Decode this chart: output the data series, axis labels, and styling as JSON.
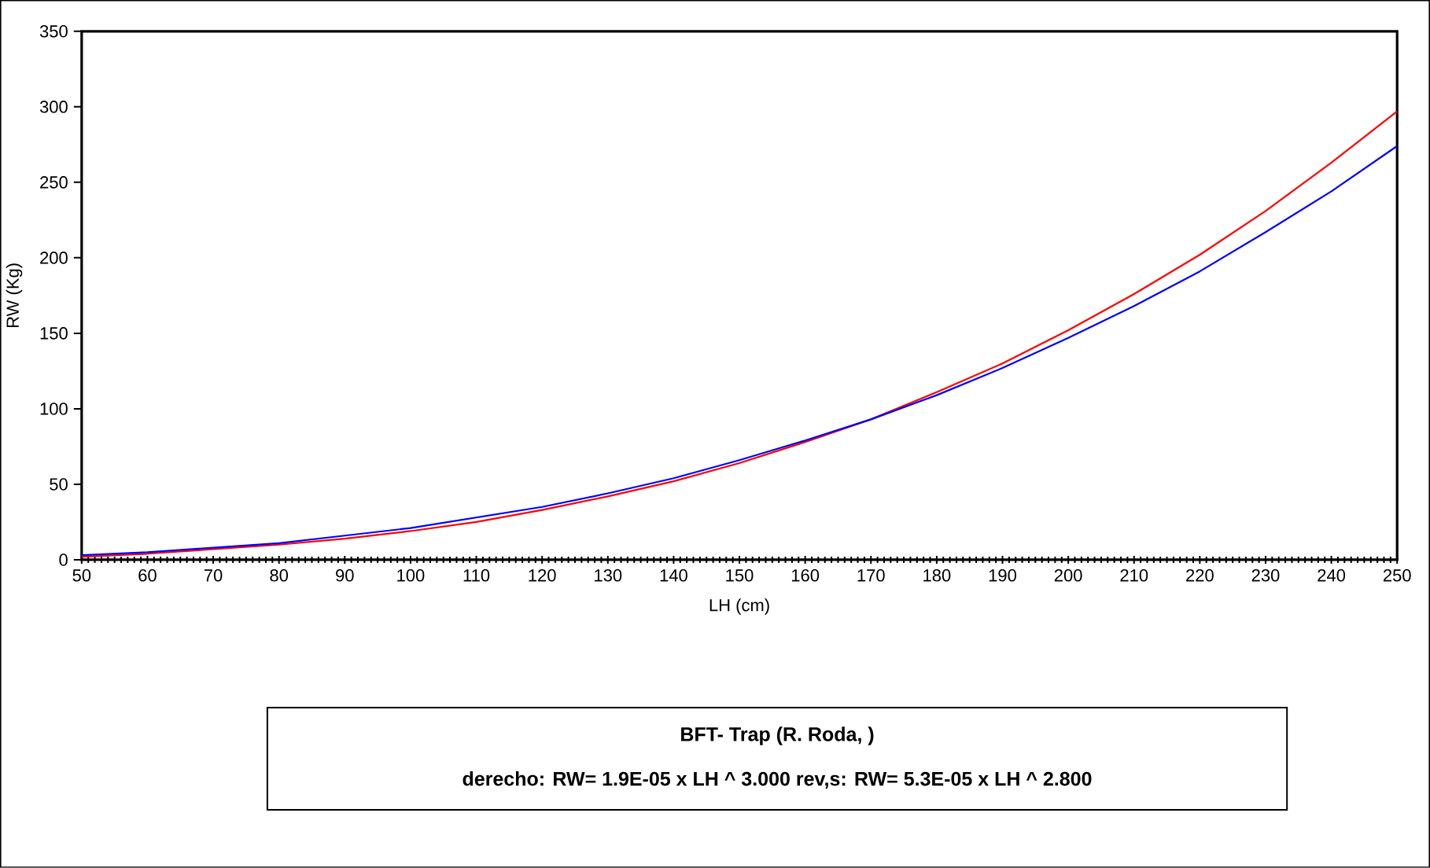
{
  "chart_data": {
    "type": "line",
    "title": "BFT- Trap (R. Roda, )",
    "subtitle": "derecho: RW= 1.9E-05 x LH ^ 3.000   rev,s: RW= 5.3E-05 x LH ^ 2.800",
    "xlabel": "LH (cm)",
    "ylabel": "RW (Kg)",
    "x": [
      50,
      60,
      70,
      80,
      90,
      100,
      110,
      120,
      130,
      140,
      150,
      160,
      170,
      180,
      190,
      200,
      210,
      220,
      230,
      240,
      250
    ],
    "series": [
      {
        "color": "#ff0000",
        "values": [
          2,
          4,
          7,
          10,
          14,
          19,
          25,
          33,
          42,
          52,
          64,
          78,
          93,
          111,
          130,
          152,
          176,
          202,
          231,
          263,
          297
        ]
      },
      {
        "color": "#0000ff",
        "values": [
          3,
          5,
          8,
          11,
          16,
          21,
          28,
          35,
          44,
          54,
          66,
          79,
          93,
          109,
          127,
          147,
          168,
          191,
          217,
          244,
          274
        ]
      }
    ],
    "xlim": [
      50,
      250
    ],
    "ylim": [
      0,
      350
    ],
    "xticks": [
      50,
      60,
      70,
      80,
      90,
      100,
      110,
      120,
      130,
      140,
      150,
      160,
      170,
      180,
      190,
      200,
      210,
      220,
      230,
      240,
      250
    ],
    "yticks": [
      0,
      50,
      100,
      150,
      200,
      250,
      300,
      350
    ],
    "marker": "none",
    "line_style": "solid"
  }
}
